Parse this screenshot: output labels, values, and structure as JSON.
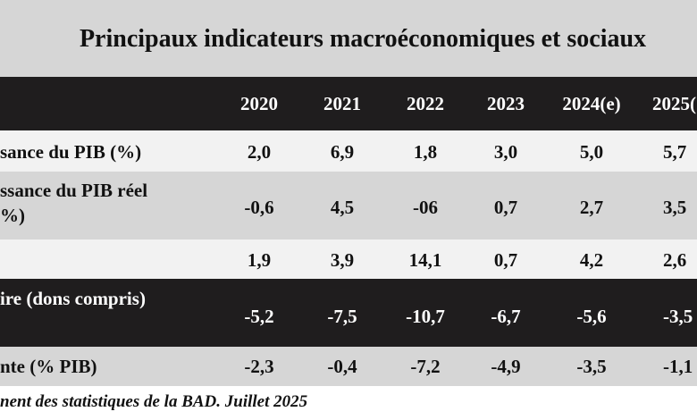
{
  "title": "Principaux indicateurs macroéconomiques et sociaux",
  "columns": [
    "2020",
    "2021",
    "2022",
    "2023",
    "2024(e)",
    "2025("
  ],
  "rows": [
    {
      "label_lines": [
        "sance du PIB (%)"
      ],
      "values": [
        "2,0",
        "6,9",
        "1,8",
        "3,0",
        "5,0",
        "5,7"
      ]
    },
    {
      "label_lines": [
        "ssance du PIB réel",
        "%)"
      ],
      "values": [
        "-0,6",
        "4,5",
        "-06",
        "0,7",
        "2,7",
        "3,5"
      ]
    },
    {
      "label_lines": [
        ""
      ],
      "values": [
        "1,9",
        "3,9",
        "14,1",
        "0,7",
        "4,2",
        "2,6"
      ]
    },
    {
      "label_lines": [
        "ire (dons compris)"
      ],
      "values": [
        "-5,2",
        "-7,5",
        "-10,7",
        "-6,7",
        "-5,6",
        "-3,5"
      ]
    },
    {
      "label_lines": [
        "nte (% PIB)"
      ],
      "values": [
        "-2,3",
        "-0,4",
        "-7,2",
        "-4,9",
        "-3,5",
        "-1,1"
      ]
    }
  ],
  "source": "nent des statistiques de la BAD. Juillet 2025",
  "colors": {
    "title_band": "#d6d6d6",
    "header_band": "#1f1d1e",
    "row_light": "#f2f2f2",
    "row_mid": "#d6d6d6",
    "row_dark": "#1f1d1e",
    "text_dark": "#111111",
    "text_light": "#ffffff"
  }
}
